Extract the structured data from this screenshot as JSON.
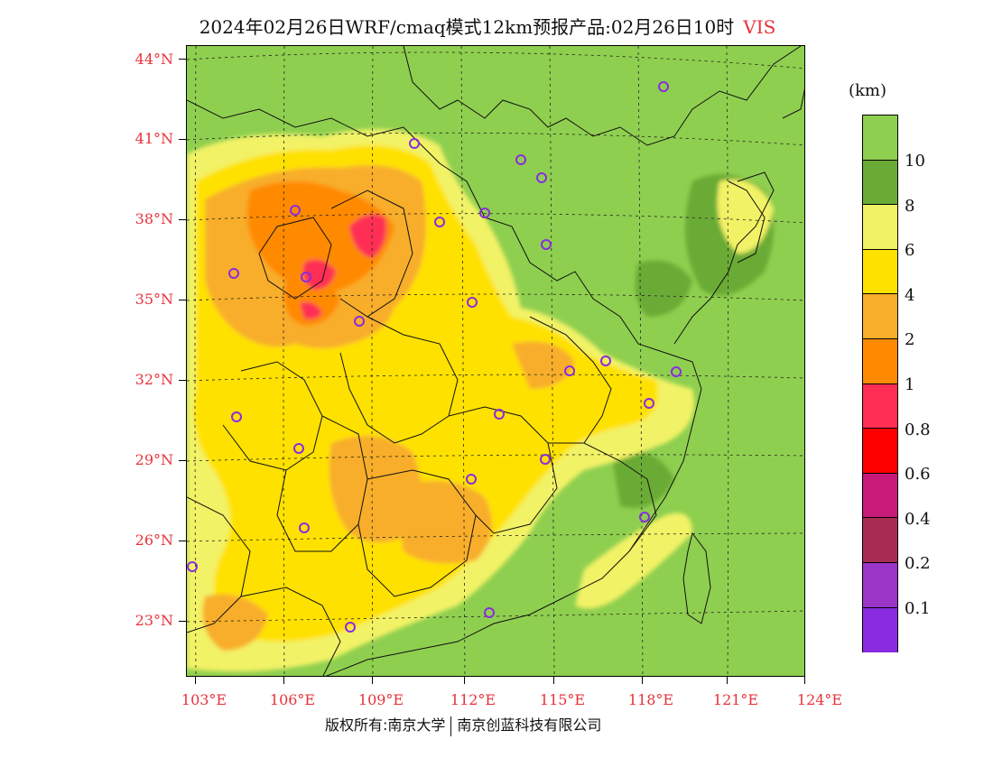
{
  "title": {
    "text": "2024年02月26日WRF/cmaq模式12km预报产品:02月26日10时",
    "variable": "VIS"
  },
  "lat_labels": [
    "44°N",
    "41°N",
    "38°N",
    "35°N",
    "32°N",
    "29°N",
    "26°N",
    "23°N"
  ],
  "lon_labels": [
    "103°E",
    "106°E",
    "109°E",
    "112°E",
    "115°E",
    "118°E",
    "121°E",
    "124°E"
  ],
  "legend": {
    "unit": "(km)",
    "labels": [
      "10",
      "8",
      "6",
      "4",
      "2",
      "1",
      "0.8",
      "0.6",
      "0.4",
      "0.2",
      "0.1"
    ],
    "colors": [
      "#8fcf4f",
      "#6aab36",
      "#f2f266",
      "#ffe100",
      "#f8ae2a",
      "#ff8a00",
      "#ff2e54",
      "#ff0000",
      "#c81a78",
      "#a82d52",
      "#9a35c8",
      "#8a2be2"
    ]
  },
  "footer": {
    "left": "版权所有:南京大学",
    "right": "南京创蓝科技有限公司"
  }
}
